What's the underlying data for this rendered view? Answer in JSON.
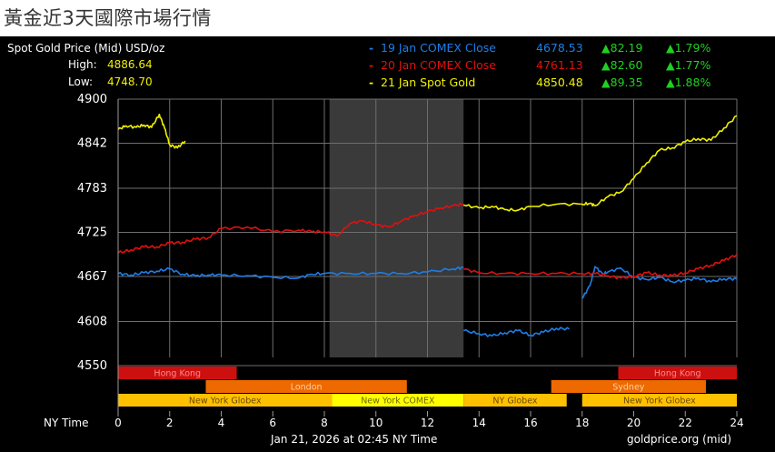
{
  "page_title": "黃金近3天國際市場行情",
  "chart_data": {
    "type": "line",
    "title": "Spot Gold Price (Mid) USD/oz",
    "high_label": "High:",
    "high_value": "4886.64",
    "low_label": "Low:",
    "low_value": "4748.70",
    "x_axis_label": "NY Time",
    "x_ticks": [
      "0",
      "2",
      "4",
      "6",
      "8",
      "10",
      "12",
      "14",
      "16",
      "18",
      "20",
      "22",
      "24"
    ],
    "x_range": [
      0,
      24
    ],
    "y_ticks": [
      "4900",
      "4842",
      "4783",
      "4725",
      "4667",
      "4608",
      "4550"
    ],
    "y_range": [
      4550,
      4900
    ],
    "grid": true,
    "footer_left": "Jan 21, 2026 at 02:45 NY Time",
    "footer_right": "goldprice.org (mid)",
    "shaded_region": [
      8.2,
      13.4
    ],
    "legend": [
      {
        "dash": "-",
        "name": "19 Jan COMEX Close",
        "value": "4678.53",
        "change": "▲82.19",
        "pct": "▲1.79%",
        "color": "#1e7de6"
      },
      {
        "dash": "-",
        "name": "20 Jan COMEX Close",
        "value": "4761.13",
        "change": "▲82.60",
        "pct": "▲1.77%",
        "color": "#e01010"
      },
      {
        "dash": "-",
        "name": "21 Jan Spot Gold",
        "value": "4850.48",
        "change": "▲89.35",
        "pct": "▲1.88%",
        "color": "#f0f000"
      }
    ],
    "series": [
      {
        "name": "19 Jan COMEX Close",
        "color": "#1e7de6",
        "segments": [
          [
            [
              0,
              4671
            ],
            [
              0.5,
              4669
            ],
            [
              1,
              4672
            ],
            [
              1.5,
              4674
            ],
            [
              2,
              4677
            ],
            [
              2.5,
              4670
            ],
            [
              3,
              4668
            ],
            [
              3.5,
              4669
            ],
            [
              4,
              4669
            ],
            [
              5,
              4668
            ],
            [
              6,
              4666
            ],
            [
              7,
              4665
            ],
            [
              7.5,
              4670
            ],
            [
              8,
              4671
            ],
            [
              9,
              4671
            ],
            [
              10,
              4671
            ],
            [
              11,
              4671
            ],
            [
              12,
              4673
            ],
            [
              13,
              4677
            ],
            [
              13.4,
              4679
            ]
          ],
          [
            [
              13.4,
              4596
            ],
            [
              14,
              4592
            ],
            [
              14.5,
              4589
            ],
            [
              15,
              4593
            ],
            [
              15.5,
              4596
            ],
            [
              16,
              4590
            ],
            [
              16.5,
              4594
            ],
            [
              17,
              4599
            ],
            [
              17.5,
              4598
            ]
          ],
          [
            [
              18,
              4638
            ],
            [
              18.3,
              4655
            ],
            [
              18.5,
              4680
            ],
            [
              18.8,
              4670
            ],
            [
              19,
              4673
            ],
            [
              19.5,
              4678
            ],
            [
              20,
              4666
            ],
            [
              20.5,
              4663
            ],
            [
              21,
              4666
            ],
            [
              21.5,
              4660
            ],
            [
              22,
              4662
            ],
            [
              22.5,
              4665
            ],
            [
              23,
              4660
            ],
            [
              23.5,
              4664
            ],
            [
              24,
              4664
            ]
          ]
        ]
      },
      {
        "name": "20 Jan COMEX Close",
        "color": "#e01010",
        "segments": [
          [
            [
              0,
              4698
            ],
            [
              0.5,
              4702
            ],
            [
              1,
              4706
            ],
            [
              1.5,
              4706
            ],
            [
              2,
              4711
            ],
            [
              2.5,
              4712
            ],
            [
              3,
              4716
            ],
            [
              3.5,
              4718
            ],
            [
              4,
              4730
            ],
            [
              5,
              4732
            ],
            [
              6,
              4726
            ],
            [
              7,
              4728
            ],
            [
              7.5,
              4726
            ],
            [
              8,
              4726
            ],
            [
              8.5,
              4720
            ],
            [
              9,
              4737
            ],
            [
              9.5,
              4740
            ],
            [
              10,
              4735
            ],
            [
              10.5,
              4732
            ],
            [
              11,
              4740
            ],
            [
              11.5,
              4747
            ],
            [
              12,
              4752
            ],
            [
              12.5,
              4757
            ],
            [
              13,
              4760
            ],
            [
              13.4,
              4762
            ]
          ],
          [
            [
              13.4,
              4677
            ],
            [
              14,
              4672
            ],
            [
              15,
              4671
            ],
            [
              16,
              4671
            ],
            [
              17,
              4671
            ],
            [
              18,
              4671
            ],
            [
              18.5,
              4671
            ],
            [
              19,
              4668
            ],
            [
              19.5,
              4665
            ],
            [
              20,
              4667
            ],
            [
              20.5,
              4672
            ],
            [
              21,
              4669
            ],
            [
              21.5,
              4668
            ],
            [
              22,
              4672
            ],
            [
              22.5,
              4677
            ],
            [
              23,
              4682
            ],
            [
              23.5,
              4688
            ],
            [
              24,
              4696
            ]
          ]
        ]
      },
      {
        "name": "21 Jan Spot Gold",
        "color": "#f0f000",
        "segments": [
          [
            [
              0,
              4860
            ],
            [
              0.3,
              4865
            ],
            [
              0.7,
              4863
            ],
            [
              1,
              4866
            ],
            [
              1.3,
              4863
            ],
            [
              1.6,
              4880
            ],
            [
              1.8,
              4862
            ],
            [
              2,
              4840
            ],
            [
              2.3,
              4836
            ],
            [
              2.6,
              4845
            ]
          ],
          [
            [
              13.4,
              4761
            ],
            [
              14,
              4757
            ],
            [
              14.5,
              4759
            ],
            [
              15,
              4755
            ],
            [
              15.5,
              4754
            ],
            [
              16,
              4759
            ],
            [
              17,
              4762
            ],
            [
              18,
              4762
            ],
            [
              18.3,
              4763
            ],
            [
              18.5,
              4760
            ],
            [
              19,
              4772
            ],
            [
              19.5,
              4778
            ],
            [
              20,
              4796
            ],
            [
              20.5,
              4816
            ],
            [
              21,
              4833
            ],
            [
              21.5,
              4836
            ],
            [
              22,
              4844
            ],
            [
              22.5,
              4848
            ],
            [
              23,
              4846
            ],
            [
              23.5,
              4862
            ],
            [
              24,
              4878
            ]
          ]
        ]
      }
    ],
    "sessions": [
      {
        "label": "Hong Kong",
        "start": 0,
        "end": 4.6,
        "row": 0,
        "color": "#cc1010",
        "text": "#ff8888"
      },
      {
        "label": "Hong Kong",
        "start": 19.4,
        "end": 24,
        "row": 0,
        "color": "#cc1010",
        "text": "#ff8888"
      },
      {
        "label": "London",
        "start": 3.4,
        "end": 11.2,
        "row": 1,
        "color": "#ee6a00",
        "text": "#ffd0a0"
      },
      {
        "label": "Sydney",
        "start": 16.8,
        "end": 22.8,
        "row": 1,
        "color": "#ee6a00",
        "text": "#ffd0a0"
      },
      {
        "label": "New York Globex",
        "start": 0,
        "end": 8.3,
        "row": 2,
        "color": "#ffc000",
        "text": "#6a4a00"
      },
      {
        "label": "New York COMEX",
        "start": 8.3,
        "end": 13.4,
        "row": 2,
        "color": "#ffff00",
        "text": "#6a6a00"
      },
      {
        "label": "NY Globex",
        "start": 13.4,
        "end": 17.4,
        "row": 2,
        "color": "#ffc000",
        "text": "#6a4a00"
      },
      {
        "label": "New York Globex",
        "start": 18,
        "end": 24,
        "row": 2,
        "color": "#ffc000",
        "text": "#6a4a00"
      }
    ]
  }
}
